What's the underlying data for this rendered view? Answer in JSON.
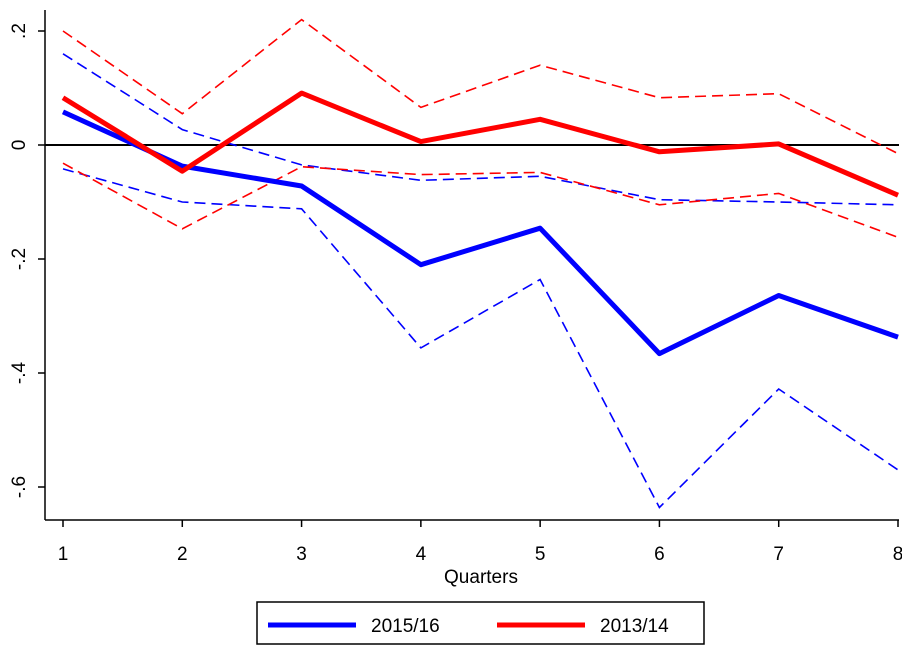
{
  "chart_data": {
    "type": "line",
    "title": "",
    "xlabel": "Quarters",
    "ylabel": "",
    "x": [
      1,
      2,
      3,
      4,
      5,
      6,
      7,
      8
    ],
    "xlim": [
      1,
      8
    ],
    "ylim": [
      -0.66,
      0.24
    ],
    "x_ticks": [
      1,
      2,
      3,
      4,
      5,
      6,
      7,
      8
    ],
    "x_tick_labels": [
      "1",
      "2",
      "3",
      "4",
      "5",
      "6",
      "7",
      "8"
    ],
    "y_ticks": [
      0.2,
      0,
      -0.2,
      -0.4,
      -0.6
    ],
    "y_tick_labels": [
      ".2",
      "0",
      "-.2",
      "-.4",
      "-.6"
    ],
    "reference_line": 0,
    "grid": false,
    "legend_position": "bottom",
    "series": [
      {
        "name": "2015/16",
        "color": "#0000ff",
        "values": [
          0.058,
          -0.037,
          -0.072,
          -0.21,
          -0.146,
          -0.366,
          -0.264,
          -0.337
        ],
        "upper": [
          0.16,
          0.027,
          -0.035,
          -0.062,
          -0.055,
          -0.096,
          -0.1,
          -0.105
        ],
        "lower": [
          -0.042,
          -0.1,
          -0.112,
          -0.356,
          -0.236,
          -0.636,
          -0.428,
          -0.57
        ]
      },
      {
        "name": "2013/14",
        "color": "#ff0000",
        "values": [
          0.083,
          -0.046,
          0.091,
          0.006,
          0.045,
          -0.012,
          0.002,
          -0.088
        ],
        "upper": [
          0.2,
          0.055,
          0.22,
          0.066,
          0.14,
          0.083,
          0.09,
          -0.015
        ],
        "lower": [
          -0.032,
          -0.147,
          -0.038,
          -0.052,
          -0.048,
          -0.105,
          -0.085,
          -0.162
        ]
      }
    ]
  }
}
